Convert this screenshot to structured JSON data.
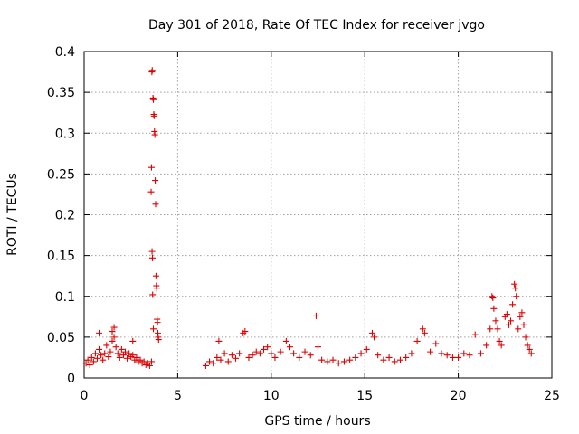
{
  "chart_data": {
    "type": "scatter",
    "title": "Day 301 of 2018, Rate Of TEC Index for receiver jvgo",
    "xlabel": "GPS time / hours",
    "ylabel": "ROTI / TECUs",
    "xlim": [
      0,
      25
    ],
    "ylim": [
      0,
      0.4
    ],
    "x_ticks": [
      0,
      5,
      10,
      15,
      20,
      25
    ],
    "x_tick_labels": [
      "0",
      "5",
      "10",
      "15",
      "20",
      "25"
    ],
    "y_ticks": [
      0,
      0.05,
      0.1,
      0.15,
      0.2,
      0.25,
      0.3,
      0.35,
      0.4
    ],
    "y_tick_labels": [
      "0",
      "0.05",
      "0.1",
      "0.15",
      "0.2",
      "0.25",
      "0.3",
      "0.35",
      "0.4"
    ],
    "grid": true,
    "legend": "none",
    "marker": "+",
    "series_color": "#e00000",
    "series": [
      {
        "values": [
          [
            0.1,
            0.018
          ],
          [
            0.2,
            0.022
          ],
          [
            0.3,
            0.016
          ],
          [
            0.4,
            0.025
          ],
          [
            0.5,
            0.02
          ],
          [
            0.6,
            0.03
          ],
          [
            0.7,
            0.024
          ],
          [
            0.8,
            0.035
          ],
          [
            0.9,
            0.028
          ],
          [
            1.0,
            0.022
          ],
          [
            1.1,
            0.03
          ],
          [
            1.2,
            0.04
          ],
          [
            1.3,
            0.026
          ],
          [
            1.4,
            0.032
          ],
          [
            1.5,
            0.045
          ],
          [
            1.6,
            0.05
          ],
          [
            1.7,
            0.038
          ],
          [
            1.8,
            0.03
          ],
          [
            1.9,
            0.025
          ],
          [
            2.0,
            0.035
          ],
          [
            2.1,
            0.028
          ],
          [
            2.2,
            0.032
          ],
          [
            2.3,
            0.024
          ],
          [
            2.4,
            0.03
          ],
          [
            2.5,
            0.026
          ],
          [
            2.6,
            0.028
          ],
          [
            2.7,
            0.022
          ],
          [
            2.8,
            0.025
          ],
          [
            2.9,
            0.02
          ],
          [
            3.0,
            0.022
          ],
          [
            3.1,
            0.018
          ],
          [
            3.2,
            0.02
          ],
          [
            3.3,
            0.016
          ],
          [
            3.4,
            0.018
          ],
          [
            3.5,
            0.015
          ],
          [
            3.6,
            0.02
          ],
          [
            0.8,
            0.055
          ],
          [
            1.5,
            0.057
          ],
          [
            1.6,
            0.062
          ],
          [
            2.6,
            0.045
          ],
          [
            3.62,
            0.375
          ],
          [
            3.64,
            0.377
          ],
          [
            3.68,
            0.343
          ],
          [
            3.7,
            0.341
          ],
          [
            3.72,
            0.323
          ],
          [
            3.74,
            0.321
          ],
          [
            3.76,
            0.302
          ],
          [
            3.78,
            0.298
          ],
          [
            3.6,
            0.258
          ],
          [
            3.58,
            0.228
          ],
          [
            3.8,
            0.242
          ],
          [
            3.82,
            0.213
          ],
          [
            3.63,
            0.155
          ],
          [
            3.65,
            0.147
          ],
          [
            3.84,
            0.125
          ],
          [
            3.86,
            0.113
          ],
          [
            3.88,
            0.11
          ],
          [
            3.66,
            0.102
          ],
          [
            3.9,
            0.072
          ],
          [
            3.92,
            0.068
          ],
          [
            3.94,
            0.055
          ],
          [
            3.96,
            0.05
          ],
          [
            3.98,
            0.047
          ],
          [
            3.7,
            0.06
          ],
          [
            6.5,
            0.015
          ],
          [
            6.7,
            0.02
          ],
          [
            6.9,
            0.018
          ],
          [
            7.1,
            0.025
          ],
          [
            7.2,
            0.045
          ],
          [
            7.3,
            0.022
          ],
          [
            7.5,
            0.03
          ],
          [
            7.7,
            0.02
          ],
          [
            7.9,
            0.028
          ],
          [
            8.1,
            0.024
          ],
          [
            8.3,
            0.03
          ],
          [
            8.5,
            0.055
          ],
          [
            8.6,
            0.057
          ],
          [
            8.8,
            0.025
          ],
          [
            9.0,
            0.028
          ],
          [
            9.2,
            0.032
          ],
          [
            9.4,
            0.03
          ],
          [
            9.6,
            0.035
          ],
          [
            9.8,
            0.038
          ],
          [
            10.0,
            0.03
          ],
          [
            10.2,
            0.025
          ],
          [
            10.5,
            0.032
          ],
          [
            10.8,
            0.045
          ],
          [
            11.0,
            0.038
          ],
          [
            11.2,
            0.03
          ],
          [
            11.5,
            0.025
          ],
          [
            11.8,
            0.032
          ],
          [
            12.1,
            0.028
          ],
          [
            12.4,
            0.076
          ],
          [
            12.5,
            0.038
          ],
          [
            12.7,
            0.022
          ],
          [
            13.0,
            0.02
          ],
          [
            13.3,
            0.022
          ],
          [
            13.6,
            0.018
          ],
          [
            13.9,
            0.02
          ],
          [
            14.2,
            0.022
          ],
          [
            14.5,
            0.025
          ],
          [
            14.8,
            0.03
          ],
          [
            15.1,
            0.035
          ],
          [
            15.4,
            0.055
          ],
          [
            15.5,
            0.05
          ],
          [
            15.7,
            0.028
          ],
          [
            16.0,
            0.022
          ],
          [
            16.3,
            0.025
          ],
          [
            16.6,
            0.02
          ],
          [
            16.9,
            0.022
          ],
          [
            17.2,
            0.025
          ],
          [
            17.5,
            0.03
          ],
          [
            17.8,
            0.045
          ],
          [
            18.1,
            0.06
          ],
          [
            18.2,
            0.055
          ],
          [
            18.5,
            0.032
          ],
          [
            18.8,
            0.042
          ],
          [
            19.1,
            0.03
          ],
          [
            19.4,
            0.028
          ],
          [
            19.7,
            0.025
          ],
          [
            20.0,
            0.025
          ],
          [
            20.3,
            0.03
          ],
          [
            20.6,
            0.028
          ],
          [
            20.9,
            0.053
          ],
          [
            21.2,
            0.03
          ],
          [
            21.5,
            0.04
          ],
          [
            21.7,
            0.06
          ],
          [
            21.8,
            0.1
          ],
          [
            21.85,
            0.098
          ],
          [
            21.9,
            0.085
          ],
          [
            22.0,
            0.07
          ],
          [
            22.1,
            0.06
          ],
          [
            22.2,
            0.045
          ],
          [
            22.3,
            0.04
          ],
          [
            22.5,
            0.075
          ],
          [
            22.6,
            0.078
          ],
          [
            22.7,
            0.065
          ],
          [
            22.8,
            0.07
          ],
          [
            22.9,
            0.09
          ],
          [
            23.0,
            0.115
          ],
          [
            23.05,
            0.11
          ],
          [
            23.1,
            0.1
          ],
          [
            23.2,
            0.06
          ],
          [
            23.3,
            0.075
          ],
          [
            23.4,
            0.08
          ],
          [
            23.5,
            0.065
          ],
          [
            23.6,
            0.05
          ],
          [
            23.7,
            0.04
          ],
          [
            23.8,
            0.035
          ],
          [
            23.9,
            0.03
          ]
        ]
      }
    ]
  }
}
